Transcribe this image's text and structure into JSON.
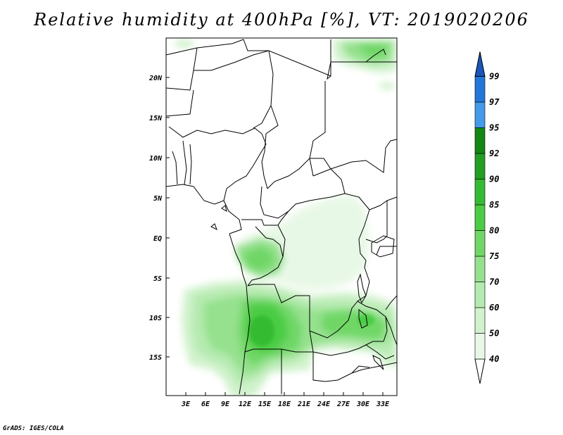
{
  "title": "Relative humidity at 400hPa [%], VT: 2019020206",
  "credit": "GrADS: IGES/COLA",
  "map": {
    "lon_labels": [
      "3E",
      "6E",
      "9E",
      "12E",
      "15E",
      "18E",
      "21E",
      "24E",
      "27E",
      "30E",
      "33E"
    ],
    "lat_labels": [
      "20N",
      "15N",
      "10N",
      "5N",
      "EQ",
      "5S",
      "10S",
      "15S"
    ],
    "lon_range": [
      0,
      35
    ],
    "lat_range": [
      -19.5,
      24.5
    ]
  },
  "colorbar": {
    "levels": [
      "40",
      "50",
      "60",
      "70",
      "75",
      "80",
      "85",
      "90",
      "92",
      "95",
      "97",
      "99"
    ],
    "colors": [
      "#ffffff",
      "#e8f8e6",
      "#d0f2cc",
      "#b5eab0",
      "#95e18e",
      "#70d766",
      "#4ccc45",
      "#35bb33",
      "#229e22",
      "#138712",
      "#4499e8",
      "#2277d8",
      "#1b55bb"
    ]
  }
}
